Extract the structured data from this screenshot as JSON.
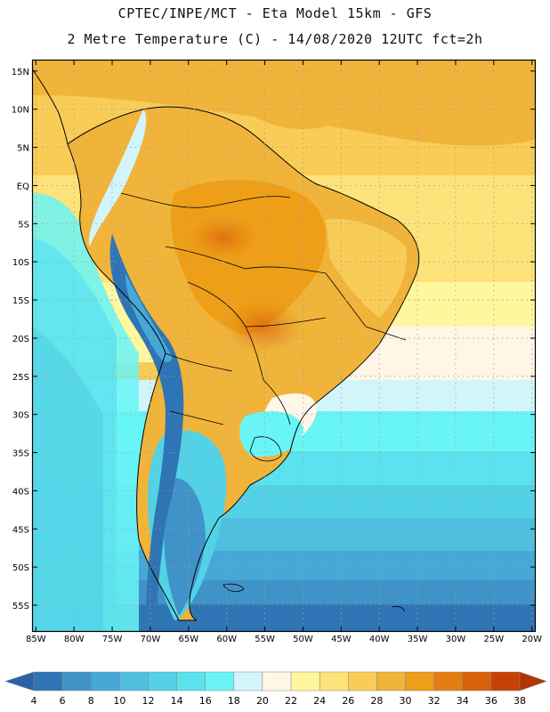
{
  "header": {
    "line1": "CPTEC/INPE/MCT -  Eta Model 15km - GFS",
    "line2": "2 Metre Temperature (C) - 14/08/2020 12UTC fct=2h"
  },
  "map": {
    "lat_labels": [
      "15N",
      "10N",
      "5N",
      "EQ",
      "5S",
      "10S",
      "15S",
      "20S",
      "25S",
      "30S",
      "35S",
      "40S",
      "45S",
      "50S",
      "55S"
    ],
    "lon_labels": [
      "85W",
      "80W",
      "75W",
      "70W",
      "65W",
      "60W",
      "55W",
      "50W",
      "45W",
      "40W",
      "35W",
      "30W",
      "25W",
      "20W"
    ],
    "lat_values": [
      15,
      10,
      5,
      0,
      -5,
      -10,
      -15,
      -20,
      -25,
      -30,
      -35,
      -40,
      -45,
      -50,
      -55
    ],
    "lon_values": [
      -85,
      -80,
      -75,
      -70,
      -65,
      -60,
      -55,
      -50,
      -45,
      -40,
      -35,
      -30,
      -25,
      -20
    ],
    "extent": {
      "lon_min": -85.5,
      "lon_max": -19.5,
      "lat_min": -58.5,
      "lat_max": 16.5
    }
  },
  "colorbar": {
    "labels": [
      "4",
      "6",
      "8",
      "10",
      "12",
      "14",
      "16",
      "18",
      "20",
      "22",
      "24",
      "26",
      "28",
      "30",
      "32",
      "34",
      "36",
      "38"
    ],
    "colors": [
      "#2a62a8",
      "#2f74b4",
      "#3f93c8",
      "#45a8d6",
      "#4fbfe0",
      "#53d2e6",
      "#5ce2ef",
      "#69f4f6",
      "#d2f4fb",
      "#fff6e6",
      "#fff79e",
      "#fee27a",
      "#f7cc57",
      "#f0b43a",
      "#ee9f17",
      "#e57c12",
      "#d86007",
      "#c74006",
      "#b23400"
    ]
  }
}
